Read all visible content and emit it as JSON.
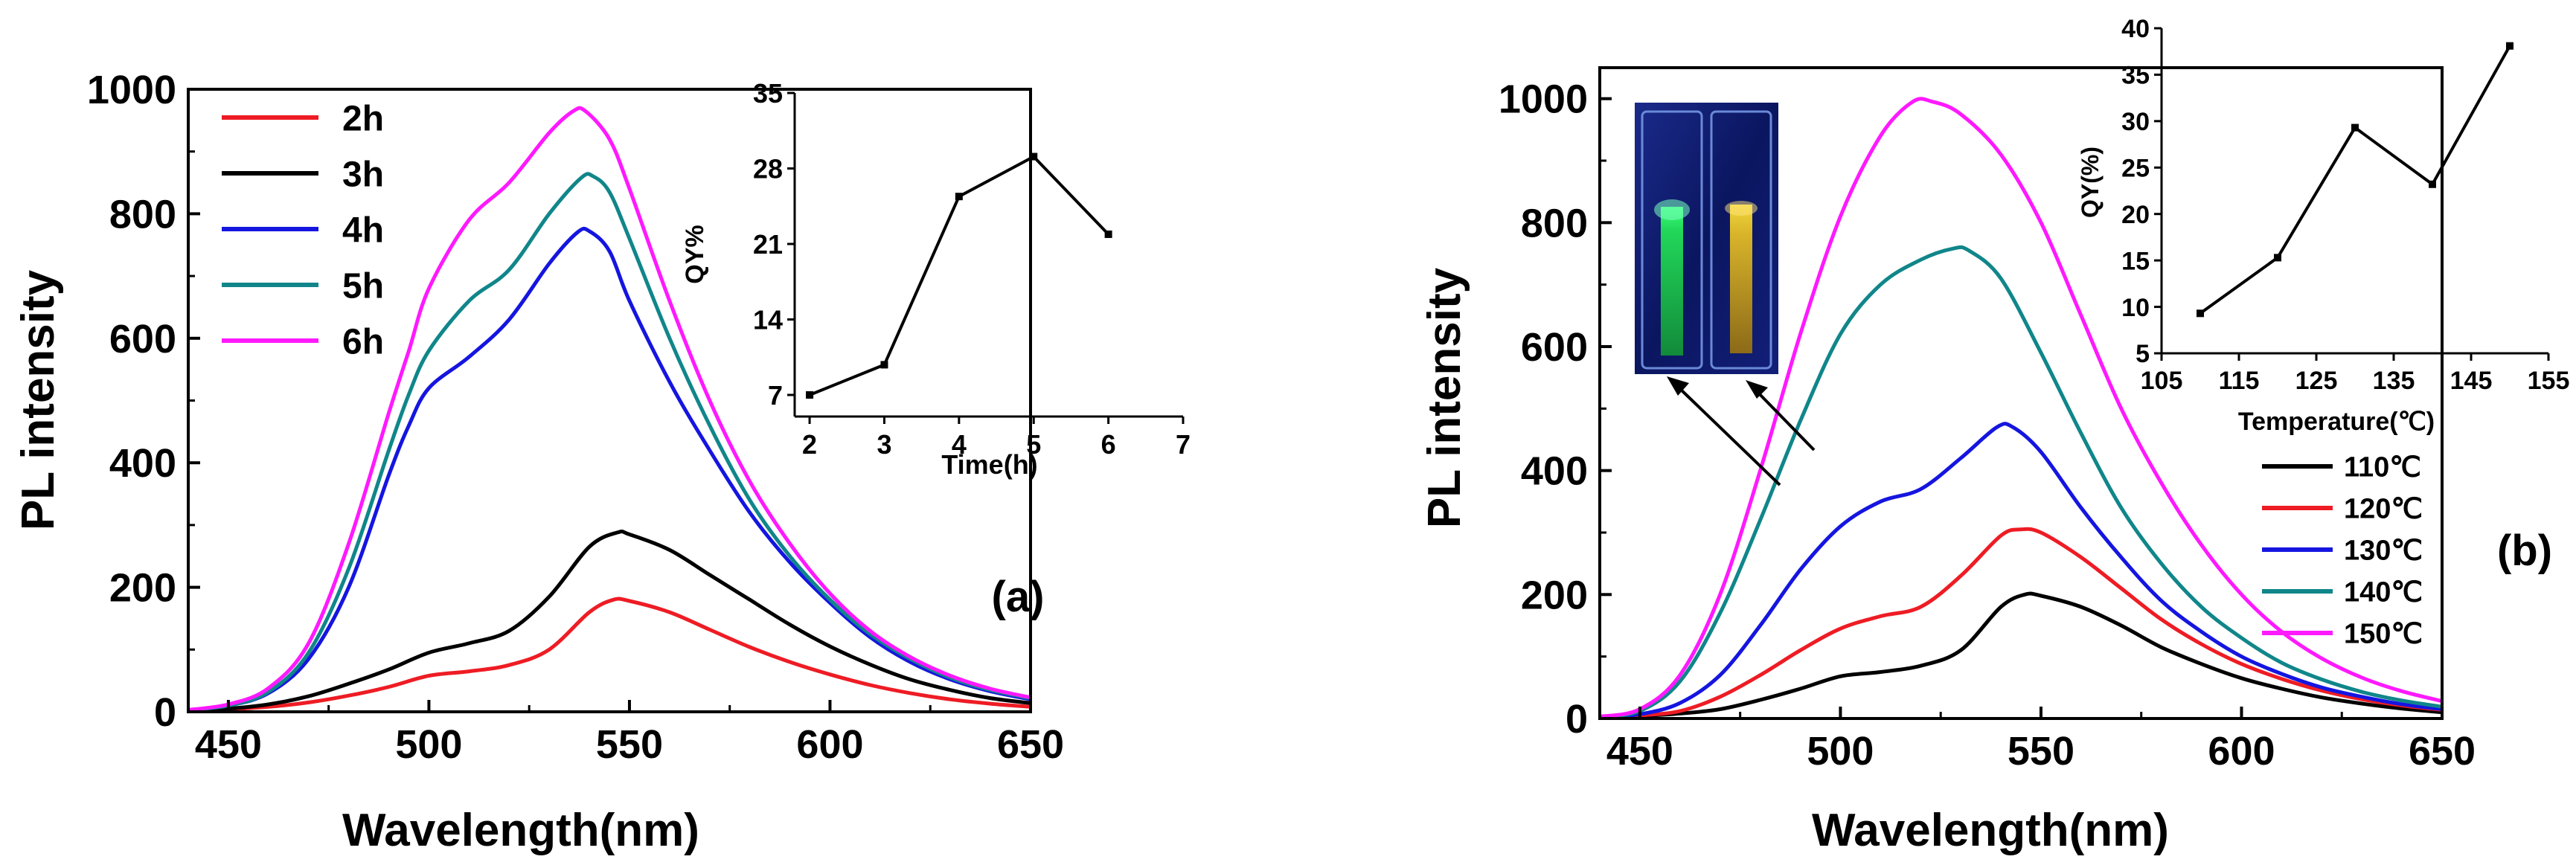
{
  "chart_data": [
    {
      "panel": "a",
      "type": "line",
      "panel_label": "(a)",
      "xlabel": "Wavelength(nm)",
      "ylabel": "PL intensity",
      "xlim": [
        440,
        650
      ],
      "ylim": [
        0,
        1000
      ],
      "xticks": [
        450,
        500,
        550,
        600,
        650
      ],
      "yticks": [
        0,
        200,
        400,
        600,
        800,
        1000
      ],
      "legend_position": "top-left",
      "series": [
        {
          "name": "2h",
          "color": "#ee1c24",
          "points": [
            [
              440,
              2
            ],
            [
              450,
              4
            ],
            [
              460,
              8
            ],
            [
              470,
              15
            ],
            [
              480,
              26
            ],
            [
              490,
              40
            ],
            [
              500,
              58
            ],
            [
              510,
              65
            ],
            [
              520,
              75
            ],
            [
              530,
              100
            ],
            [
              540,
              160
            ],
            [
              546,
              180
            ],
            [
              550,
              178
            ],
            [
              560,
              160
            ],
            [
              570,
              132
            ],
            [
              580,
              104
            ],
            [
              590,
              80
            ],
            [
              600,
              60
            ],
            [
              610,
              43
            ],
            [
              620,
              30
            ],
            [
              630,
              20
            ],
            [
              640,
              13
            ],
            [
              650,
              8
            ]
          ]
        },
        {
          "name": "3h",
          "color": "#000000",
          "points": [
            [
              440,
              2
            ],
            [
              450,
              5
            ],
            [
              460,
              12
            ],
            [
              470,
              25
            ],
            [
              480,
              45
            ],
            [
              490,
              68
            ],
            [
              500,
              95
            ],
            [
              510,
              110
            ],
            [
              520,
              130
            ],
            [
              530,
              185
            ],
            [
              540,
              265
            ],
            [
              547,
              288
            ],
            [
              550,
              285
            ],
            [
              560,
              260
            ],
            [
              570,
              220
            ],
            [
              580,
              180
            ],
            [
              590,
              140
            ],
            [
              600,
              105
            ],
            [
              610,
              76
            ],
            [
              620,
              52
            ],
            [
              630,
              35
            ],
            [
              640,
              22
            ],
            [
              650,
              14
            ]
          ]
        },
        {
          "name": "4h",
          "color": "#1515e0",
          "points": [
            [
              440,
              3
            ],
            [
              450,
              10
            ],
            [
              460,
              30
            ],
            [
              470,
              85
            ],
            [
              480,
              200
            ],
            [
              490,
              380
            ],
            [
              495,
              460
            ],
            [
              500,
              520
            ],
            [
              510,
              570
            ],
            [
              520,
              630
            ],
            [
              530,
              720
            ],
            [
              537,
              770
            ],
            [
              540,
              772
            ],
            [
              545,
              740
            ],
            [
              550,
              660
            ],
            [
              560,
              530
            ],
            [
              570,
              420
            ],
            [
              580,
              320
            ],
            [
              590,
              240
            ],
            [
              600,
              175
            ],
            [
              610,
              120
            ],
            [
              620,
              80
            ],
            [
              630,
              52
            ],
            [
              640,
              33
            ],
            [
              650,
              20
            ]
          ]
        },
        {
          "name": "5h",
          "color": "#10868a",
          "points": [
            [
              440,
              3
            ],
            [
              450,
              10
            ],
            [
              460,
              32
            ],
            [
              470,
              95
            ],
            [
              480,
              230
            ],
            [
              490,
              420
            ],
            [
              495,
              510
            ],
            [
              500,
              580
            ],
            [
              510,
              660
            ],
            [
              520,
              710
            ],
            [
              530,
              800
            ],
            [
              538,
              858
            ],
            [
              541,
              860
            ],
            [
              545,
              835
            ],
            [
              550,
              760
            ],
            [
              560,
              600
            ],
            [
              570,
              460
            ],
            [
              580,
              340
            ],
            [
              590,
              250
            ],
            [
              600,
              180
            ],
            [
              610,
              125
            ],
            [
              620,
              85
            ],
            [
              630,
              55
            ],
            [
              640,
              35
            ],
            [
              650,
              22
            ]
          ]
        },
        {
          "name": "6h",
          "color": "#ff19ff",
          "points": [
            [
              440,
              3
            ],
            [
              450,
              12
            ],
            [
              460,
              38
            ],
            [
              470,
              110
            ],
            [
              480,
              270
            ],
            [
              490,
              480
            ],
            [
              495,
              580
            ],
            [
              500,
              680
            ],
            [
              510,
              790
            ],
            [
              520,
              850
            ],
            [
              530,
              930
            ],
            [
              536,
              965
            ],
            [
              539,
              965
            ],
            [
              545,
              920
            ],
            [
              550,
              840
            ],
            [
              560,
              660
            ],
            [
              570,
              500
            ],
            [
              580,
              370
            ],
            [
              590,
              270
            ],
            [
              600,
              190
            ],
            [
              610,
              130
            ],
            [
              620,
              88
            ],
            [
              630,
              58
            ],
            [
              640,
              37
            ],
            [
              650,
              23
            ]
          ]
        }
      ],
      "inset": {
        "type": "line",
        "xlabel": "Time(h)",
        "ylabel": "QY%",
        "xlim": [
          1.8,
          7
        ],
        "ylim": [
          5,
          35
        ],
        "xticks": [
          2,
          3,
          4,
          5,
          6,
          7
        ],
        "yticks": [
          7,
          14,
          21,
          28,
          35
        ],
        "x": [
          2,
          3,
          4,
          5,
          6
        ],
        "y": [
          7.0,
          9.8,
          25.4,
          29.1,
          21.9
        ],
        "color": "#000000"
      }
    },
    {
      "panel": "b",
      "type": "line",
      "panel_label": "(b)",
      "xlabel": "Wavelength(nm)",
      "ylabel": "PL intensity",
      "xlim": [
        440,
        650
      ],
      "ylim": [
        0,
        1050
      ],
      "xticks": [
        450,
        500,
        550,
        600,
        650
      ],
      "yticks": [
        0,
        200,
        400,
        600,
        800,
        1000
      ],
      "legend_position": "bottom-right",
      "series": [
        {
          "name": "110℃",
          "color": "#000000",
          "points": [
            [
              440,
              2
            ],
            [
              450,
              4
            ],
            [
              460,
              8
            ],
            [
              470,
              15
            ],
            [
              480,
              30
            ],
            [
              490,
              48
            ],
            [
              500,
              68
            ],
            [
              510,
              75
            ],
            [
              520,
              85
            ],
            [
              530,
              110
            ],
            [
              540,
              180
            ],
            [
              546,
              200
            ],
            [
              550,
              198
            ],
            [
              560,
              180
            ],
            [
              570,
              150
            ],
            [
              580,
              115
            ],
            [
              590,
              88
            ],
            [
              600,
              65
            ],
            [
              610,
              48
            ],
            [
              620,
              34
            ],
            [
              630,
              24
            ],
            [
              640,
              16
            ],
            [
              650,
              10
            ]
          ]
        },
        {
          "name": "120℃",
          "color": "#ee1c24",
          "points": [
            [
              440,
              2
            ],
            [
              450,
              5
            ],
            [
              460,
              12
            ],
            [
              470,
              35
            ],
            [
              480,
              70
            ],
            [
              490,
              110
            ],
            [
              500,
              145
            ],
            [
              510,
              165
            ],
            [
              520,
              180
            ],
            [
              530,
              230
            ],
            [
              540,
              295
            ],
            [
              545,
              305
            ],
            [
              550,
              300
            ],
            [
              560,
              260
            ],
            [
              570,
              210
            ],
            [
              580,
              160
            ],
            [
              590,
              120
            ],
            [
              600,
              88
            ],
            [
              610,
              64
            ],
            [
              620,
              45
            ],
            [
              630,
              31
            ],
            [
              640,
              21
            ],
            [
              650,
              14
            ]
          ]
        },
        {
          "name": "130℃",
          "color": "#1515e0",
          "points": [
            [
              440,
              2
            ],
            [
              450,
              7
            ],
            [
              460,
              25
            ],
            [
              470,
              70
            ],
            [
              480,
              150
            ],
            [
              490,
              240
            ],
            [
              500,
              310
            ],
            [
              510,
              350
            ],
            [
              520,
              370
            ],
            [
              530,
              420
            ],
            [
              539,
              470
            ],
            [
              543,
              470
            ],
            [
              550,
              430
            ],
            [
              560,
              340
            ],
            [
              570,
              260
            ],
            [
              580,
              190
            ],
            [
              590,
              140
            ],
            [
              600,
              100
            ],
            [
              610,
              72
            ],
            [
              620,
              50
            ],
            [
              630,
              35
            ],
            [
              640,
              23
            ],
            [
              650,
              15
            ]
          ]
        },
        {
          "name": "140℃",
          "color": "#10868a",
          "points": [
            [
              440,
              3
            ],
            [
              450,
              12
            ],
            [
              460,
              60
            ],
            [
              470,
              170
            ],
            [
              480,
              320
            ],
            [
              490,
              480
            ],
            [
              500,
              620
            ],
            [
              510,
              700
            ],
            [
              520,
              740
            ],
            [
              528,
              758
            ],
            [
              532,
              755
            ],
            [
              540,
              710
            ],
            [
              550,
              590
            ],
            [
              560,
              460
            ],
            [
              570,
              340
            ],
            [
              580,
              250
            ],
            [
              590,
              180
            ],
            [
              600,
              130
            ],
            [
              610,
              90
            ],
            [
              620,
              63
            ],
            [
              630,
              43
            ],
            [
              640,
              29
            ],
            [
              650,
              19
            ]
          ]
        },
        {
          "name": "150℃",
          "color": "#ff19ff",
          "points": [
            [
              440,
              3
            ],
            [
              450,
              15
            ],
            [
              460,
              70
            ],
            [
              470,
              200
            ],
            [
              480,
              400
            ],
            [
              490,
              620
            ],
            [
              500,
              810
            ],
            [
              510,
              940
            ],
            [
              518,
              995
            ],
            [
              523,
              995
            ],
            [
              530,
              975
            ],
            [
              540,
              910
            ],
            [
              550,
              800
            ],
            [
              560,
              650
            ],
            [
              570,
              500
            ],
            [
              580,
              380
            ],
            [
              590,
              280
            ],
            [
              600,
              200
            ],
            [
              610,
              140
            ],
            [
              620,
              97
            ],
            [
              630,
              66
            ],
            [
              640,
              44
            ],
            [
              650,
              28
            ]
          ]
        }
      ],
      "inset": {
        "type": "line",
        "xlabel": "Temperature(℃)",
        "ylabel": "QY(%)",
        "xlim": [
          105,
          155
        ],
        "ylim": [
          5,
          40
        ],
        "xticks": [
          105,
          115,
          125,
          135,
          145,
          155
        ],
        "yticks": [
          5,
          10,
          15,
          20,
          25,
          30,
          35,
          40
        ],
        "x": [
          110,
          120,
          130,
          140,
          150
        ],
        "y": [
          9.3,
          15.3,
          29.3,
          23.2,
          38.1
        ],
        "color": "#000000"
      }
    }
  ]
}
